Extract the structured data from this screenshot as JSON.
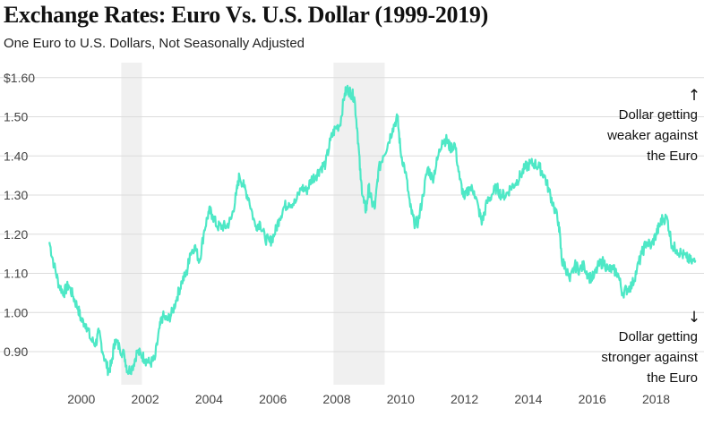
{
  "header": {
    "title": "Exchange Rates: Euro Vs. U.S. Dollar (1999-2019)",
    "subtitle": "One Euro to U.S. Dollars, Not Seasonally Adjusted"
  },
  "chart_data": {
    "type": "line",
    "title": "Exchange Rates: Euro Vs. U.S. Dollar (1999-2019)",
    "subtitle": "One Euro to U.S. Dollars, Not Seasonally Adjusted",
    "xlabel": "",
    "ylabel": "",
    "xlim": [
      1998.8,
      2019.5
    ],
    "ylim": [
      0.82,
      1.62
    ],
    "grid": true,
    "line_color": "#4ee8c6",
    "shade_color": "#f0f0f0",
    "y_ticks": [
      {
        "value": 1.6,
        "label": "$1.60"
      },
      {
        "value": 1.5,
        "label": "1.50"
      },
      {
        "value": 1.4,
        "label": "1.40"
      },
      {
        "value": 1.3,
        "label": "1.30"
      },
      {
        "value": 1.2,
        "label": "1.20"
      },
      {
        "value": 1.1,
        "label": "1.10"
      },
      {
        "value": 1.0,
        "label": "1.00"
      },
      {
        "value": 0.9,
        "label": "0.90"
      }
    ],
    "x_ticks": [
      {
        "value": 2000,
        "label": "2000"
      },
      {
        "value": 2002,
        "label": "2002"
      },
      {
        "value": 2004,
        "label": "2004"
      },
      {
        "value": 2006,
        "label": "2006"
      },
      {
        "value": 2008,
        "label": "2008"
      },
      {
        "value": 2010,
        "label": "2010"
      },
      {
        "value": 2012,
        "label": "2012"
      },
      {
        "value": 2014,
        "label": "2014"
      },
      {
        "value": 2016,
        "label": "2016"
      },
      {
        "value": 2018,
        "label": "2018"
      }
    ],
    "shaded_periods": [
      {
        "start": 2001.25,
        "end": 2001.9
      },
      {
        "start": 2007.9,
        "end": 2009.5
      }
    ],
    "series": [
      {
        "name": "Euro to U.S. Dollar",
        "x": [
          1999.0,
          1999.15,
          1999.3,
          1999.45,
          1999.6,
          1999.75,
          1999.9,
          2000.0,
          2000.15,
          2000.3,
          2000.45,
          2000.55,
          2000.7,
          2000.85,
          2000.95,
          2001.05,
          2001.2,
          2001.35,
          2001.45,
          2001.6,
          2001.75,
          2001.9,
          2002.0,
          2002.15,
          2002.3,
          2002.45,
          2002.55,
          2002.7,
          2002.85,
          2003.0,
          2003.15,
          2003.3,
          2003.4,
          2003.55,
          2003.7,
          2003.85,
          2004.0,
          2004.1,
          2004.25,
          2004.4,
          2004.55,
          2004.7,
          2004.85,
          2004.95,
          2005.1,
          2005.25,
          2005.45,
          2005.6,
          2005.75,
          2005.9,
          2006.05,
          2006.2,
          2006.35,
          2006.5,
          2006.7,
          2006.9,
          2007.05,
          2007.2,
          2007.35,
          2007.5,
          2007.65,
          2007.8,
          2007.95,
          2008.1,
          2008.25,
          2008.35,
          2008.45,
          2008.55,
          2008.65,
          2008.75,
          2008.85,
          2008.92,
          2009.0,
          2009.1,
          2009.2,
          2009.3,
          2009.45,
          2009.6,
          2009.75,
          2009.9,
          2010.0,
          2010.15,
          2010.3,
          2010.42,
          2010.55,
          2010.7,
          2010.85,
          2011.0,
          2011.15,
          2011.3,
          2011.45,
          2011.55,
          2011.7,
          2011.85,
          2012.0,
          2012.15,
          2012.3,
          2012.45,
          2012.55,
          2012.7,
          2012.85,
          2013.0,
          2013.15,
          2013.3,
          2013.45,
          2013.6,
          2013.75,
          2013.9,
          2014.05,
          2014.2,
          2014.35,
          2014.5,
          2014.65,
          2014.8,
          2014.95,
          2015.05,
          2015.15,
          2015.3,
          2015.45,
          2015.6,
          2015.75,
          2015.9,
          2016.05,
          2016.2,
          2016.35,
          2016.5,
          2016.65,
          2016.8,
          2016.95,
          2017.1,
          2017.25,
          2017.4,
          2017.55,
          2017.7,
          2017.85,
          2018.0,
          2018.1,
          2018.2,
          2018.35,
          2018.5,
          2018.65,
          2018.8,
          2018.95,
          2019.1,
          2019.25
        ],
        "values": [
          1.18,
          1.12,
          1.07,
          1.05,
          1.07,
          1.04,
          1.01,
          0.98,
          0.97,
          0.93,
          0.92,
          0.95,
          0.89,
          0.85,
          0.87,
          0.93,
          0.91,
          0.89,
          0.85,
          0.86,
          0.9,
          0.89,
          0.88,
          0.87,
          0.88,
          0.96,
          0.99,
          0.98,
          1.0,
          1.04,
          1.08,
          1.1,
          1.15,
          1.17,
          1.13,
          1.21,
          1.26,
          1.25,
          1.22,
          1.22,
          1.22,
          1.24,
          1.3,
          1.35,
          1.32,
          1.29,
          1.22,
          1.23,
          1.19,
          1.18,
          1.2,
          1.24,
          1.27,
          1.28,
          1.28,
          1.32,
          1.31,
          1.34,
          1.35,
          1.37,
          1.38,
          1.44,
          1.47,
          1.48,
          1.56,
          1.57,
          1.56,
          1.55,
          1.46,
          1.34,
          1.28,
          1.26,
          1.32,
          1.28,
          1.27,
          1.36,
          1.4,
          1.43,
          1.47,
          1.5,
          1.41,
          1.36,
          1.27,
          1.23,
          1.23,
          1.3,
          1.37,
          1.34,
          1.39,
          1.44,
          1.44,
          1.42,
          1.43,
          1.34,
          1.29,
          1.32,
          1.31,
          1.26,
          1.23,
          1.28,
          1.3,
          1.32,
          1.3,
          1.3,
          1.32,
          1.33,
          1.35,
          1.37,
          1.38,
          1.38,
          1.37,
          1.35,
          1.31,
          1.27,
          1.23,
          1.13,
          1.12,
          1.08,
          1.12,
          1.11,
          1.12,
          1.09,
          1.09,
          1.12,
          1.13,
          1.11,
          1.11,
          1.1,
          1.05,
          1.06,
          1.07,
          1.11,
          1.15,
          1.18,
          1.17,
          1.2,
          1.22,
          1.24,
          1.24,
          1.17,
          1.16,
          1.15,
          1.14,
          1.13,
          1.13
        ]
      }
    ],
    "annotations": [
      {
        "arrow": "↑",
        "lines": [
          "Dollar getting",
          "weaker against",
          "the Euro"
        ]
      },
      {
        "arrow": "↓",
        "lines": [
          "Dollar getting",
          "stronger against",
          "the Euro"
        ]
      }
    ]
  }
}
